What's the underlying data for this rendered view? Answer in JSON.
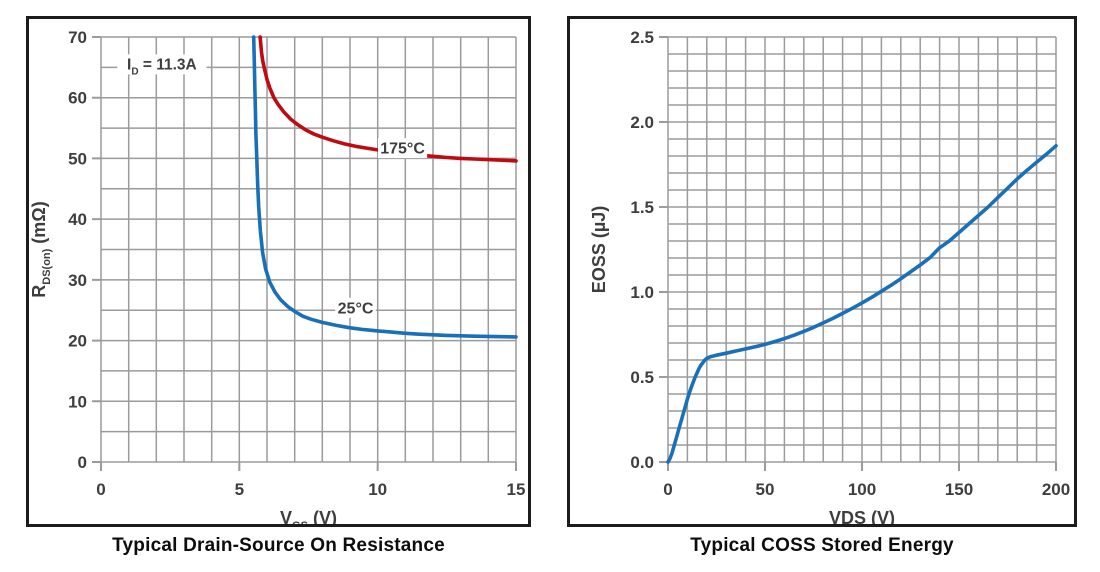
{
  "page": {
    "background": "#ffffff"
  },
  "colors": {
    "grid": "#9b9b9b",
    "axis_text": "#3e3e3e",
    "title_text": "#0d0d0d",
    "panel_border": "#1c1c1c",
    "red_curve": "#bf0a12",
    "blue_curve": "#1a70b8"
  },
  "chart_data": [
    {
      "type": "line",
      "title": "Typical Drain-Source On Resistance",
      "xlabel": "V_GS (V)",
      "xlabel_parts": [
        {
          "text": "V"
        },
        {
          "text": "GS",
          "sub": true
        },
        {
          "text": " (V)"
        }
      ],
      "ylabel": "R_DS(on) (mΩ)",
      "ylabel_parts": [
        {
          "text": "R"
        },
        {
          "text": "DS(on)",
          "sub": true
        },
        {
          "text": " (mΩ)"
        }
      ],
      "xlim": [
        0,
        15
      ],
      "ylim": [
        0,
        70
      ],
      "x_minor_step": 1,
      "y_minor_step": 5,
      "grid": true,
      "legend": "inline-labels",
      "x_ticks": {
        "values": [
          0,
          5,
          10,
          15
        ],
        "labels": [
          "0",
          "5",
          "10",
          "15"
        ]
      },
      "y_ticks": {
        "values": [
          0,
          10,
          20,
          30,
          40,
          50,
          60,
          70
        ],
        "labels": [
          "0",
          "10",
          "20",
          "30",
          "40",
          "50",
          "60",
          "70"
        ]
      },
      "annotation": {
        "text": "I_D = 11.3A",
        "parts": [
          {
            "text": "I"
          },
          {
            "text": "D",
            "sub": true
          },
          {
            "text": " = 11.3A"
          }
        ],
        "x": 2.2,
        "y": 65.5
      },
      "series": [
        {
          "key": "t175",
          "name": "175°C",
          "color_key": "red_curve",
          "label_x": 10.9,
          "label_y": 51.7,
          "points": [
            [
              5.75,
              70
            ],
            [
              5.8,
              67.5
            ],
            [
              5.85,
              66
            ],
            [
              5.92,
              64.5
            ],
            [
              6.0,
              63
            ],
            [
              6.1,
              61.6
            ],
            [
              6.25,
              60
            ],
            [
              6.4,
              58.9
            ],
            [
              6.6,
              57.7
            ],
            [
              6.85,
              56.5
            ],
            [
              7.1,
              55.6
            ],
            [
              7.4,
              54.7
            ],
            [
              7.7,
              54.0
            ],
            [
              8.0,
              53.5
            ],
            [
              8.4,
              52.9
            ],
            [
              8.8,
              52.4
            ],
            [
              9.2,
              52.0
            ],
            [
              9.6,
              51.7
            ],
            [
              10.0,
              51.4
            ],
            [
              10.5,
              51.1
            ],
            [
              11.0,
              50.8
            ],
            [
              11.5,
              50.55
            ],
            [
              12.0,
              50.35
            ],
            [
              12.5,
              50.15
            ],
            [
              13.0,
              50.0
            ],
            [
              13.5,
              49.9
            ],
            [
              14.0,
              49.8
            ],
            [
              14.5,
              49.7
            ],
            [
              15.0,
              49.6
            ]
          ]
        },
        {
          "key": "t25",
          "name": "25°C",
          "color_key": "blue_curve",
          "label_x": 9.2,
          "label_y": 25.4,
          "points": [
            [
              5.52,
              70
            ],
            [
              5.54,
              66
            ],
            [
              5.56,
              62
            ],
            [
              5.58,
              58
            ],
            [
              5.6,
              54
            ],
            [
              5.63,
              50
            ],
            [
              5.66,
              46
            ],
            [
              5.7,
              42
            ],
            [
              5.76,
              38
            ],
            [
              5.84,
              34.5
            ],
            [
              5.95,
              31.8
            ],
            [
              6.1,
              29.6
            ],
            [
              6.3,
              27.9
            ],
            [
              6.5,
              26.7
            ],
            [
              6.75,
              25.6
            ],
            [
              7.0,
              24.8
            ],
            [
              7.3,
              24.0
            ],
            [
              7.6,
              23.5
            ],
            [
              8.0,
              23.0
            ],
            [
              8.5,
              22.5
            ],
            [
              9.0,
              22.1
            ],
            [
              9.5,
              21.8
            ],
            [
              10.0,
              21.6
            ],
            [
              10.5,
              21.4
            ],
            [
              11.0,
              21.2
            ],
            [
              11.5,
              21.05
            ],
            [
              12.0,
              20.95
            ],
            [
              12.5,
              20.85
            ],
            [
              13.0,
              20.78
            ],
            [
              13.5,
              20.72
            ],
            [
              14.0,
              20.68
            ],
            [
              14.5,
              20.63
            ],
            [
              15.0,
              20.6
            ]
          ]
        }
      ]
    },
    {
      "type": "line",
      "title": "Typical COSS Stored Energy",
      "xlabel": "VDS (V)",
      "xlabel_parts": [
        {
          "text": "VDS (V)"
        }
      ],
      "ylabel": "EOSS (µJ)",
      "ylabel_parts": [
        {
          "text": "EOSS (µJ)"
        }
      ],
      "xlim": [
        0,
        200
      ],
      "ylim": [
        0,
        2.5
      ],
      "x_minor_step": 10,
      "y_minor_step": 0.1,
      "grid": true,
      "x_ticks": {
        "values": [
          0,
          50,
          100,
          150,
          200
        ],
        "labels": [
          "0",
          "50",
          "100",
          "150",
          "200"
        ]
      },
      "y_ticks": {
        "values": [
          0,
          0.5,
          1.0,
          1.5,
          2.0,
          2.5
        ],
        "labels": [
          "0.0",
          "0.5",
          "1.0",
          "1.5",
          "2.0",
          "2.5"
        ]
      },
      "series": [
        {
          "key": "eoss",
          "name": "EOSS",
          "color_key": "blue_curve",
          "points": [
            [
              0,
              0
            ],
            [
              1,
              0.02
            ],
            [
              2,
              0.05
            ],
            [
              3,
              0.09
            ],
            [
              4,
              0.13
            ],
            [
              5,
              0.17
            ],
            [
              6,
              0.21
            ],
            [
              7,
              0.25
            ],
            [
              8,
              0.29
            ],
            [
              9,
              0.33
            ],
            [
              10,
              0.37
            ],
            [
              11,
              0.405
            ],
            [
              12,
              0.44
            ],
            [
              13,
              0.47
            ],
            [
              14,
              0.5
            ],
            [
              15,
              0.525
            ],
            [
              16,
              0.55
            ],
            [
              17,
              0.57
            ],
            [
              18,
              0.585
            ],
            [
              19,
              0.6
            ],
            [
              20,
              0.61
            ],
            [
              22,
              0.62
            ],
            [
              25,
              0.628
            ],
            [
              30,
              0.64
            ],
            [
              35,
              0.653
            ],
            [
              40,
              0.665
            ],
            [
              45,
              0.678
            ],
            [
              50,
              0.692
            ],
            [
              55,
              0.708
            ],
            [
              60,
              0.726
            ],
            [
              65,
              0.746
            ],
            [
              70,
              0.768
            ],
            [
              75,
              0.792
            ],
            [
              80,
              0.818
            ],
            [
              85,
              0.845
            ],
            [
              90,
              0.874
            ],
            [
              95,
              0.904
            ],
            [
              100,
              0.936
            ],
            [
              105,
              0.969
            ],
            [
              110,
              1.004
            ],
            [
              115,
              1.04
            ],
            [
              120,
              1.078
            ],
            [
              125,
              1.118
            ],
            [
              130,
              1.159
            ],
            [
              135,
              1.202
            ],
            [
              140,
              1.26
            ],
            [
              145,
              1.3
            ],
            [
              150,
              1.35
            ],
            [
              155,
              1.4
            ],
            [
              160,
              1.45
            ],
            [
              165,
              1.5
            ],
            [
              170,
              1.555
            ],
            [
              175,
              1.61
            ],
            [
              180,
              1.665
            ],
            [
              185,
              1.715
            ],
            [
              190,
              1.763
            ],
            [
              195,
              1.81
            ],
            [
              200,
              1.86
            ]
          ]
        }
      ]
    }
  ]
}
